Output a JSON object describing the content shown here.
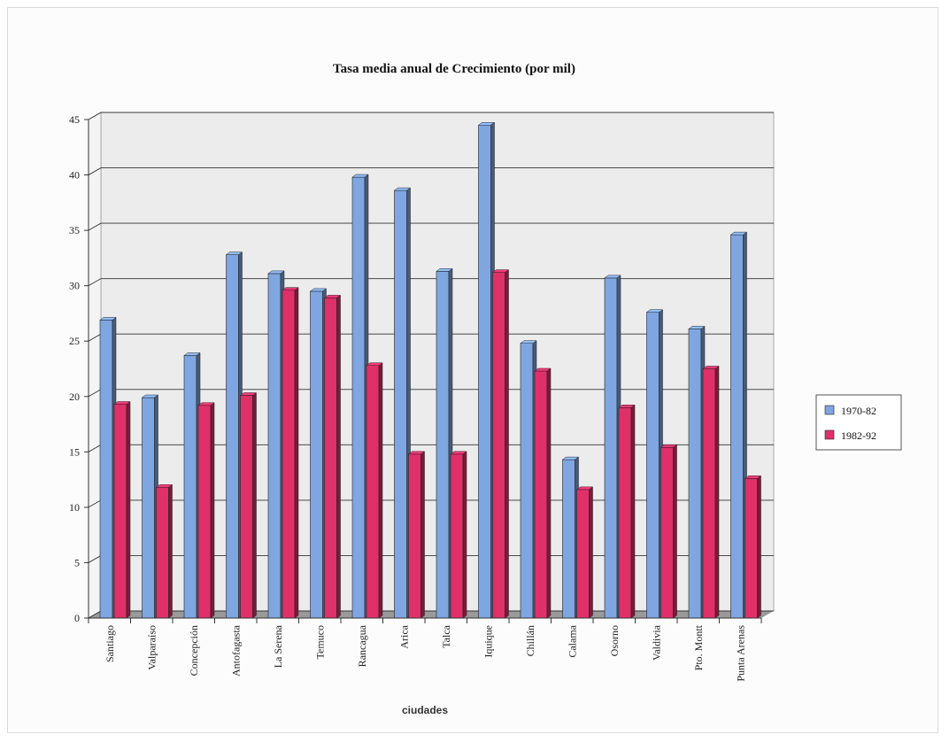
{
  "chart_data": {
    "type": "bar",
    "title": "Tasa media anual de Crecimiento (por mil)",
    "xlabel": "ciudades",
    "ylabel": "",
    "ylim": [
      0,
      45
    ],
    "yticks": [
      0,
      5,
      10,
      15,
      20,
      25,
      30,
      35,
      40,
      45
    ],
    "grid": true,
    "legend_position": "right",
    "categories": [
      "Santiago",
      "Valparaíso",
      "Concepción",
      "Antofagasta",
      "La Serena",
      "Temuco",
      "Rancagua",
      "Arica",
      "Talca",
      "Iquique",
      "Chillán",
      "Calama",
      "Osorno",
      "Valdivia",
      "Pto. Montt",
      "Punta Arenas"
    ],
    "series": [
      {
        "name": "1970-82",
        "color": "#7fa6e0",
        "values": [
          26.9,
          19.9,
          23.7,
          32.8,
          31.1,
          29.5,
          39.8,
          38.6,
          31.3,
          44.5,
          24.8,
          14.3,
          30.7,
          27.6,
          26.1,
          34.6
        ]
      },
      {
        "name": "1982-92",
        "color": "#e0306a",
        "values": [
          19.3,
          11.8,
          19.2,
          20.1,
          29.6,
          28.9,
          22.8,
          14.8,
          14.8,
          31.2,
          22.3,
          11.6,
          19.0,
          15.4,
          22.5,
          12.6
        ]
      }
    ]
  }
}
